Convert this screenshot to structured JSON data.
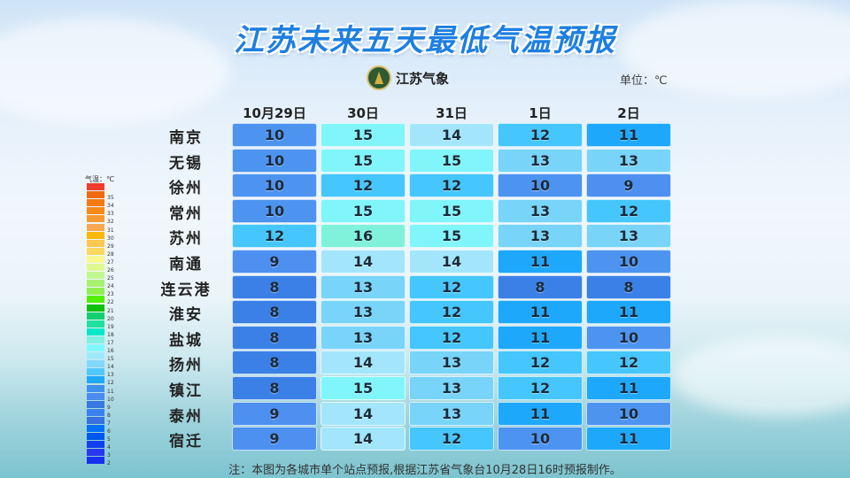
{
  "title": "江苏未来五天最低气温预报",
  "logo_text": "江苏气象",
  "unit": "单位：℃",
  "dates": [
    "10月29日",
    "30日",
    "31日",
    "1日",
    "2日"
  ],
  "rows": [
    {
      "city": "南京",
      "t": [
        10,
        15,
        14,
        12,
        11
      ]
    },
    {
      "city": "无锡",
      "t": [
        10,
        15,
        15,
        13,
        13
      ]
    },
    {
      "city": "徐州",
      "t": [
        10,
        12,
        12,
        10,
        9
      ]
    },
    {
      "city": "常州",
      "t": [
        10,
        15,
        15,
        13,
        12
      ]
    },
    {
      "city": "苏州",
      "t": [
        12,
        16,
        15,
        13,
        13
      ]
    },
    {
      "city": "南通",
      "t": [
        9,
        14,
        14,
        11,
        10
      ]
    },
    {
      "city": "连云港",
      "t": [
        8,
        13,
        12,
        8,
        8
      ]
    },
    {
      "city": "淮安",
      "t": [
        8,
        13,
        12,
        11,
        11
      ]
    },
    {
      "city": "盐城",
      "t": [
        8,
        13,
        12,
        11,
        10
      ]
    },
    {
      "city": "扬州",
      "t": [
        8,
        14,
        13,
        12,
        12
      ]
    },
    {
      "city": "镇江",
      "t": [
        8,
        15,
        13,
        12,
        11
      ]
    },
    {
      "city": "泰州",
      "t": [
        9,
        14,
        13,
        11,
        10
      ]
    },
    {
      "city": "宿迁",
      "t": [
        9,
        14,
        12,
        10,
        11
      ]
    }
  ],
  "cell_colors": {
    "8": "#3a80e6",
    "9": "#4d90f0",
    "10": "#4d94f0",
    "11": "#1ea8fc",
    "12": "#45c6fc",
    "13": "#78d4f8",
    "14": "#a3e6fc",
    "15": "#80f6fa",
    "16": "#80f2dc"
  },
  "legend": {
    "title": "气温：℃",
    "items": [
      {
        "label": "",
        "color": "#f03c2c"
      },
      {
        "label": "35",
        "color": "#f06a10"
      },
      {
        "label": "34",
        "color": "#f57a10"
      },
      {
        "label": "33",
        "color": "#f88a1a"
      },
      {
        "label": "32",
        "color": "#f89a30"
      },
      {
        "label": "31",
        "color": "#f8a850"
      },
      {
        "label": "30",
        "color": "#fbb800"
      },
      {
        "label": "29",
        "color": "#fcc850"
      },
      {
        "label": "28",
        "color": "#fcd860"
      },
      {
        "label": "27",
        "color": "#f8f890"
      },
      {
        "label": "26",
        "color": "#e0f890"
      },
      {
        "label": "25",
        "color": "#c0f890"
      },
      {
        "label": "24",
        "color": "#a8f070"
      },
      {
        "label": "23",
        "color": "#90f050"
      },
      {
        "label": "22",
        "color": "#50f000"
      },
      {
        "label": "21",
        "color": "#10c010"
      },
      {
        "label": "20",
        "color": "#10d070"
      },
      {
        "label": "19",
        "color": "#20e0a0"
      },
      {
        "label": "18",
        "color": "#00e8c8"
      },
      {
        "label": "17",
        "color": "#80f0e0"
      },
      {
        "label": "16",
        "color": "#80f8ff"
      },
      {
        "label": "15",
        "color": "#a0e8fc"
      },
      {
        "label": "14",
        "color": "#80d8fc"
      },
      {
        "label": "13",
        "color": "#50c8fc"
      },
      {
        "label": "12",
        "color": "#20a8fc"
      },
      {
        "label": "11",
        "color": "#4090f0"
      },
      {
        "label": "10",
        "color": "#4a8cf0"
      },
      {
        "label": "9",
        "color": "#3878e0"
      },
      {
        "label": "8",
        "color": "#3a80f0"
      },
      {
        "label": "7",
        "color": "#3870e0"
      },
      {
        "label": "6",
        "color": "#0070ff"
      },
      {
        "label": "5",
        "color": "#0058f0"
      },
      {
        "label": "4",
        "color": "#1040f0"
      },
      {
        "label": "3",
        "color": "#2838f0"
      },
      {
        "label": "2",
        "color": "#1830f0"
      }
    ]
  },
  "note": "注：本图为各城市单个站点预报,根据江苏省气象台10月28日16时预报制作。"
}
